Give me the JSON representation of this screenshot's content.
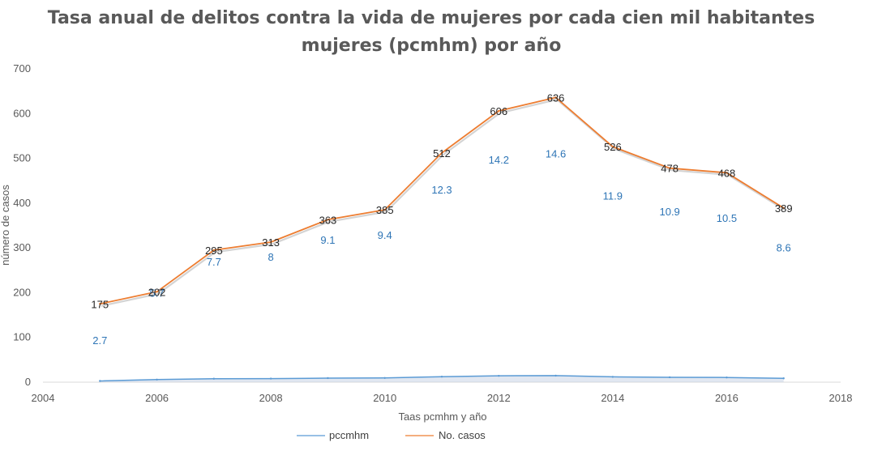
{
  "chart_data": {
    "type": "line",
    "title": "Tasa anual de delitos contra la vida de mujeres por cada cien mil habitantes mujeres (pcmhm) por año",
    "title_lines": [
      "Tasa anual de delitos contra la vida de mujeres por cada cien mil habitantes",
      "mujeres (pcmhm) por año"
    ],
    "xlabel": "Taas pcmhm y año",
    "ylabel": "número de casos",
    "xlim": [
      2004,
      2018
    ],
    "ylim": [
      0,
      700
    ],
    "x_ticks": [
      2004,
      2006,
      2008,
      2010,
      2012,
      2014,
      2016,
      2018
    ],
    "y_ticks": [
      0,
      100,
      200,
      300,
      400,
      500,
      600,
      700
    ],
    "grid": false,
    "legend_position": "bottom",
    "x": [
      2005,
      2006,
      2007,
      2008,
      2009,
      2010,
      2011,
      2012,
      2013,
      2014,
      2015,
      2016,
      2017
    ],
    "series": [
      {
        "name": "pccmhm",
        "color": "#5b9bd5",
        "label_color": "#2e75b6",
        "values": [
          2.7,
          5.7,
          7.7,
          8,
          9.1,
          9.4,
          12.3,
          14.2,
          14.6,
          11.9,
          10.9,
          10.5,
          8.6
        ]
      },
      {
        "name": "No. casos",
        "color": "#ed7d31",
        "label_color": "#262626",
        "values": [
          175,
          202,
          295,
          313,
          363,
          385,
          512,
          606,
          636,
          526,
          478,
          468,
          389
        ]
      }
    ]
  }
}
